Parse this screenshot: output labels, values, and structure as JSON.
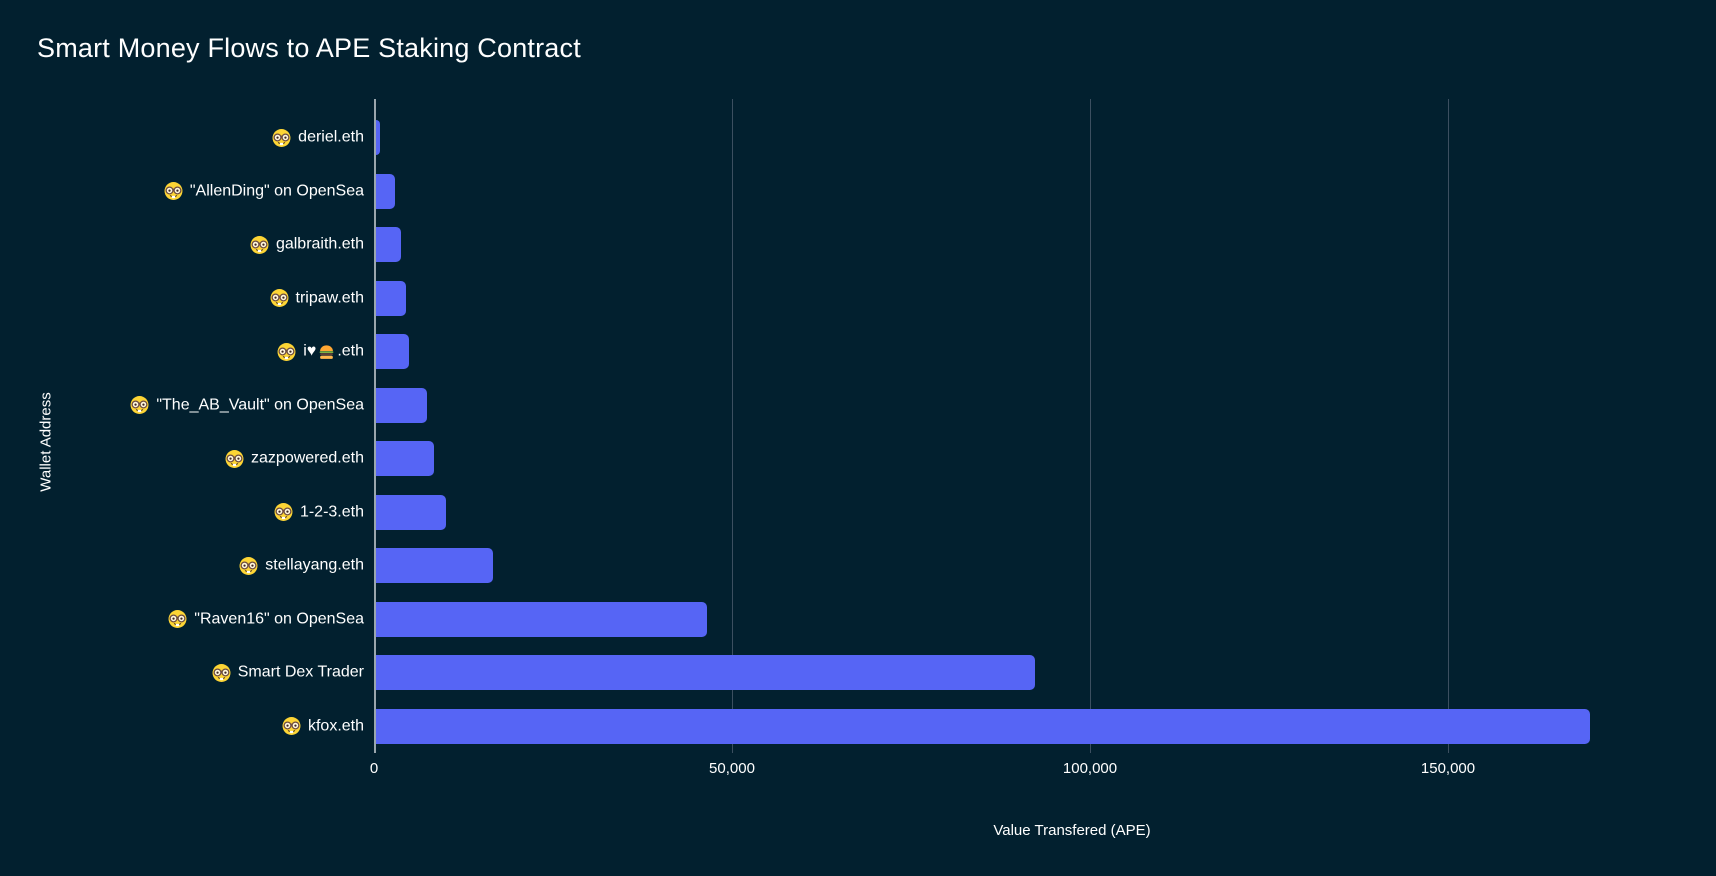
{
  "colors": {
    "background": "#02202f",
    "bar": "#5665f5",
    "axis_line": "#9aa6ad",
    "gridline": "#3c4f60",
    "text": "#ffffff"
  },
  "chart_data": {
    "type": "bar",
    "orientation": "horizontal",
    "title": "Smart Money Flows to APE Staking Contract",
    "xlabel": "Value Transfered (APE)",
    "ylabel": "Wallet Address",
    "xlim": [
      0,
      183000
    ],
    "grid": "vertical-only",
    "legend": "none",
    "category_icon": "nerd-face-emoji",
    "categories": [
      "🤓 deriel.eth",
      "🤓 \"AllenDing\" on OpenSea",
      "🤓 galbraith.eth",
      "🤓 tripaw.eth",
      "🤓 i♥🍔.eth",
      "🤓 \"The_AB_Vault\" on OpenSea",
      "🤓 zazpowered.eth",
      "🤓 1-2-3.eth",
      "🤓 stellayang.eth",
      "🤓 \"Raven16\" on OpenSea",
      "🤓 Smart Dex Trader",
      "🤓 kfox.eth"
    ],
    "values": [
      600,
      2600,
      3500,
      4200,
      4600,
      7100,
      8100,
      9800,
      16400,
      46200,
      92000,
      169600
    ],
    "gridlines": [
      50000,
      100000,
      150000
    ],
    "xticks": [
      {
        "value": 0,
        "label": "0"
      },
      {
        "value": 50000,
        "label": "50,000"
      },
      {
        "value": 100000,
        "label": "100,000"
      },
      {
        "value": 150000,
        "label": "150,000"
      }
    ]
  }
}
